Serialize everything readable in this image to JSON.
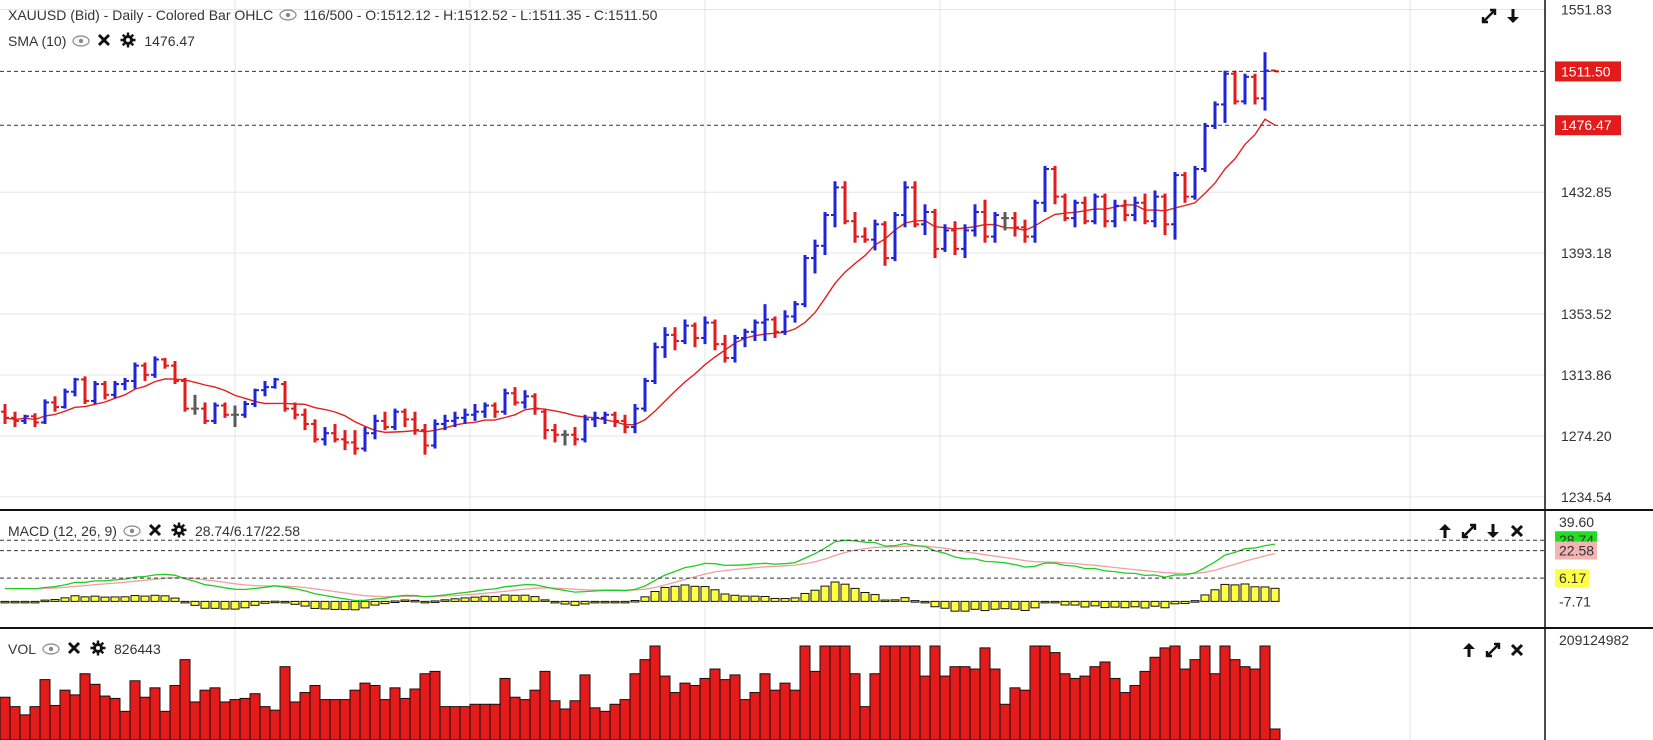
{
  "main_header": {
    "title": "XAUUSD (Bid) - Daily - Colored Bar OHLC",
    "bar_info": "116/500 - O:1512.12 - H:1512.52 - L:1511.35 - C:1511.50"
  },
  "sma_header": {
    "label": "SMA (10)",
    "value": "1476.47"
  },
  "macd_header": {
    "label": "MACD (12, 26, 9)",
    "value": "28.74/6.17/22.58"
  },
  "vol_header": {
    "label": "VOL",
    "value": "826443"
  },
  "icons": {
    "eye": "eye-icon",
    "close": "close-icon",
    "settings": "gear-icon",
    "expand": "expand-icon",
    "down": "arrow-down-icon",
    "up": "arrow-up-icon"
  },
  "colors": {
    "up_bar": "#1f24d6",
    "down_bar": "#e31b1b",
    "doji_bar": "#5a5a5a",
    "sma_line": "#e02020",
    "macd_line": "#22cc22",
    "signal_line": "#f0a0a0",
    "histogram": "#ffff44",
    "volume": "#e31b1b",
    "last_price_tag": "#e31b1b",
    "macd_tag": "#22dd22",
    "signal_tag": "#f4b4b4",
    "hist_tag": "#ffff44"
  },
  "chart_data": [
    {
      "type": "ohlc",
      "name": "XAUUSD (Bid) - Daily - Colored Bar OHLC",
      "y_ticks": [
        1551.83,
        1511.5,
        1476.47,
        1432.85,
        1393.18,
        1353.52,
        1313.86,
        1274.2,
        1234.54
      ],
      "y_tick_labels": [
        "1551.83",
        "1511.50",
        "1476.47",
        "1432.85",
        "1393.18",
        "1353.52",
        "1313.86",
        "1274.20",
        "1234.54"
      ],
      "ylim": [
        1226,
        1558
      ],
      "last_price": 1511.5,
      "sma_last": 1476.47,
      "bars": [
        [
          1290,
          1295,
          1282,
          1286
        ],
        [
          1286,
          1290,
          1280,
          1284
        ],
        [
          1284,
          1288,
          1282,
          1287
        ],
        [
          1287,
          1289,
          1280,
          1283
        ],
        [
          1283,
          1298,
          1282,
          1296
        ],
        [
          1296,
          1300,
          1290,
          1293
        ],
        [
          1293,
          1305,
          1292,
          1303
        ],
        [
          1303,
          1312,
          1300,
          1311
        ],
        [
          1311,
          1313,
          1295,
          1297
        ],
        [
          1297,
          1310,
          1295,
          1308
        ],
        [
          1308,
          1310,
          1298,
          1301
        ],
        [
          1301,
          1310,
          1299,
          1308
        ],
        [
          1308,
          1312,
          1304,
          1310
        ],
        [
          1310,
          1322,
          1305,
          1320
        ],
        [
          1320,
          1322,
          1310,
          1314
        ],
        [
          1314,
          1326,
          1312,
          1324
        ],
        [
          1324,
          1325,
          1318,
          1320
        ],
        [
          1320,
          1323,
          1308,
          1310
        ],
        [
          1310,
          1312,
          1290,
          1292
        ],
        [
          1292,
          1301,
          1288,
          1292
        ],
        [
          1292,
          1296,
          1282,
          1284
        ],
        [
          1284,
          1296,
          1282,
          1294
        ],
        [
          1294,
          1296,
          1286,
          1288
        ],
        [
          1288,
          1294,
          1280,
          1288
        ],
        [
          1288,
          1297,
          1286,
          1295
        ],
        [
          1295,
          1305,
          1293,
          1304
        ],
        [
          1304,
          1310,
          1300,
          1306
        ],
        [
          1306,
          1312,
          1305,
          1311
        ],
        [
          1308,
          1310,
          1290,
          1292
        ],
        [
          1292,
          1296,
          1285,
          1288
        ],
        [
          1288,
          1292,
          1278,
          1282
        ],
        [
          1282,
          1285,
          1270,
          1272
        ],
        [
          1272,
          1280,
          1268,
          1276
        ],
        [
          1276,
          1282,
          1270,
          1272
        ],
        [
          1272,
          1278,
          1265,
          1270
        ],
        [
          1270,
          1278,
          1262,
          1266
        ],
        [
          1266,
          1280,
          1264,
          1276
        ],
        [
          1276,
          1288,
          1272,
          1284
        ],
        [
          1284,
          1290,
          1278,
          1280
        ],
        [
          1280,
          1292,
          1278,
          1290
        ],
        [
          1290,
          1292,
          1280,
          1285
        ],
        [
          1285,
          1290,
          1275,
          1278
        ],
        [
          1278,
          1282,
          1262,
          1268
        ],
        [
          1268,
          1285,
          1266,
          1282
        ],
        [
          1282,
          1288,
          1278,
          1284
        ],
        [
          1284,
          1290,
          1280,
          1286
        ],
        [
          1286,
          1292,
          1282,
          1288
        ],
        [
          1288,
          1295,
          1284,
          1290
        ],
        [
          1290,
          1296,
          1286,
          1294
        ],
        [
          1294,
          1296,
          1286,
          1290
        ],
        [
          1290,
          1305,
          1288,
          1302
        ],
        [
          1302,
          1306,
          1294,
          1296
        ],
        [
          1296,
          1304,
          1292,
          1300
        ],
        [
          1300,
          1302,
          1288,
          1292
        ],
        [
          1290,
          1292,
          1272,
          1278
        ],
        [
          1278,
          1282,
          1270,
          1275
        ],
        [
          1275,
          1278,
          1268,
          1275
        ],
        [
          1275,
          1280,
          1268,
          1272
        ],
        [
          1272,
          1288,
          1270,
          1285
        ],
        [
          1285,
          1290,
          1280,
          1286
        ],
        [
          1286,
          1290,
          1282,
          1288
        ],
        [
          1288,
          1290,
          1280,
          1284
        ],
        [
          1284,
          1288,
          1276,
          1280
        ],
        [
          1280,
          1295,
          1276,
          1292
        ],
        [
          1292,
          1312,
          1290,
          1310
        ],
        [
          1310,
          1335,
          1308,
          1332
        ],
        [
          1332,
          1345,
          1325,
          1340
        ],
        [
          1340,
          1345,
          1330,
          1336
        ],
        [
          1336,
          1350,
          1334,
          1346
        ],
        [
          1346,
          1348,
          1332,
          1338
        ],
        [
          1338,
          1352,
          1334,
          1348
        ],
        [
          1348,
          1350,
          1330,
          1334
        ],
        [
          1334,
          1340,
          1322,
          1325
        ],
        [
          1325,
          1340,
          1322,
          1338
        ],
        [
          1338,
          1344,
          1332,
          1342
        ],
        [
          1342,
          1350,
          1336,
          1348
        ],
        [
          1348,
          1360,
          1336,
          1350
        ],
        [
          1350,
          1352,
          1338,
          1342
        ],
        [
          1342,
          1356,
          1340,
          1352
        ],
        [
          1352,
          1362,
          1348,
          1360
        ],
        [
          1360,
          1392,
          1358,
          1390
        ],
        [
          1390,
          1402,
          1380,
          1398
        ],
        [
          1398,
          1420,
          1392,
          1418
        ],
        [
          1418,
          1440,
          1410,
          1436
        ],
        [
          1436,
          1440,
          1412,
          1414
        ],
        [
          1414,
          1420,
          1400,
          1404
        ],
        [
          1404,
          1410,
          1400,
          1402
        ],
        [
          1402,
          1415,
          1395,
          1412
        ],
        [
          1412,
          1414,
          1385,
          1390
        ],
        [
          1390,
          1420,
          1388,
          1418
        ],
        [
          1418,
          1440,
          1410,
          1436
        ],
        [
          1436,
          1440,
          1410,
          1412
        ],
        [
          1412,
          1425,
          1405,
          1420
        ],
        [
          1420,
          1422,
          1390,
          1396
        ],
        [
          1396,
          1412,
          1394,
          1408
        ],
        [
          1408,
          1414,
          1392,
          1396
        ],
        [
          1396,
          1412,
          1390,
          1408
        ],
        [
          1408,
          1425,
          1404,
          1420
        ],
        [
          1420,
          1428,
          1400,
          1404
        ],
        [
          1404,
          1420,
          1400,
          1418
        ],
        [
          1416,
          1420,
          1408,
          1416
        ],
        [
          1416,
          1420,
          1404,
          1410
        ],
        [
          1410,
          1415,
          1400,
          1404
        ],
        [
          1404,
          1428,
          1400,
          1426
        ],
        [
          1426,
          1450,
          1420,
          1448
        ],
        [
          1448,
          1450,
          1425,
          1430
        ],
        [
          1430,
          1432,
          1414,
          1416
        ],
        [
          1416,
          1428,
          1410,
          1426
        ],
        [
          1426,
          1430,
          1412,
          1414
        ],
        [
          1414,
          1432,
          1412,
          1430
        ],
        [
          1430,
          1432,
          1410,
          1414
        ],
        [
          1414,
          1428,
          1410,
          1424
        ],
        [
          1424,
          1428,
          1414,
          1418
        ],
        [
          1418,
          1430,
          1414,
          1426
        ],
        [
          1426,
          1432,
          1412,
          1414
        ],
        [
          1414,
          1434,
          1410,
          1430
        ],
        [
          1430,
          1432,
          1405,
          1412
        ],
        [
          1412,
          1446,
          1402,
          1444
        ],
        [
          1444,
          1446,
          1426,
          1430
        ],
        [
          1430,
          1450,
          1428,
          1448
        ],
        [
          1448,
          1478,
          1446,
          1476
        ],
        [
          1476,
          1492,
          1474,
          1490
        ],
        [
          1490,
          1512,
          1478,
          1510
        ],
        [
          1510,
          1512,
          1490,
          1492
        ],
        [
          1492,
          1510,
          1490,
          1508
        ],
        [
          1508,
          1510,
          1490,
          1494
        ],
        [
          1494,
          1524,
          1486,
          1512
        ],
        [
          1512.12,
          1512.52,
          1511.35,
          1511.5
        ]
      ]
    },
    {
      "type": "macd",
      "name": "MACD (12, 26, 9)",
      "y_tick_labels": [
        "39.60",
        "28.74",
        "22.58",
        "6.17",
        "-7.71"
      ],
      "ylim": [
        -20,
        42
      ],
      "macd_last": 28.74,
      "signal_last": 22.58,
      "hist_last": 6.17,
      "hist_base": -7.71
    },
    {
      "type": "volume",
      "name": "VOL",
      "y_tick_labels": [
        "209124982"
      ],
      "last": 826443
    }
  ]
}
